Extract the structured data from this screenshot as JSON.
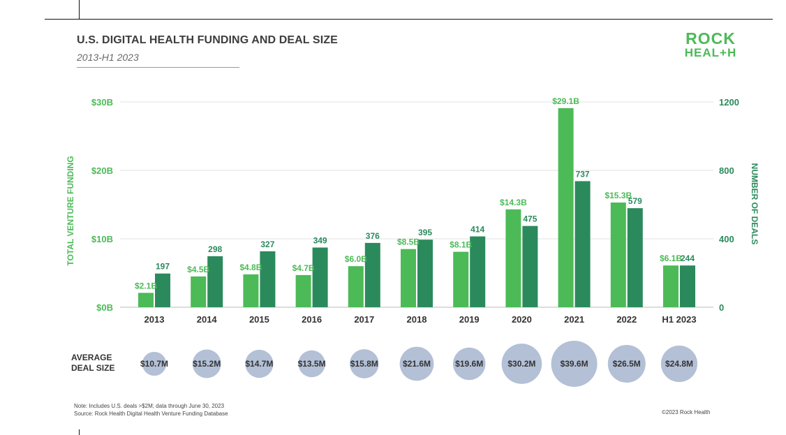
{
  "title": "U.S. DIGITAL HEALTH FUNDING AND DEAL SIZE",
  "subtitle": "2013-H1 2023",
  "logo": {
    "line1": "ROCK",
    "line2": "HEAL+H"
  },
  "note": "Note: Includes U.S. deals >$2M; data through June 30, 2023",
  "source": "Source: Rock Health Digital Health Venture Funding Database",
  "copyright": "©2023 Rock Health",
  "colors": {
    "funding": "#4cba57",
    "deals": "#2b8a5c",
    "bubble": "#b3c0d6",
    "axis_text": "#4cba57",
    "right_axis_text": "#2b8a5c"
  },
  "chart_data": {
    "type": "bar",
    "categories": [
      "2013",
      "2014",
      "2015",
      "2016",
      "2017",
      "2018",
      "2019",
      "2020",
      "2021",
      "2022",
      "H1 2023"
    ],
    "series": [
      {
        "axis": "left",
        "values": [
          2.1,
          4.5,
          4.8,
          4.7,
          6.0,
          8.5,
          8.1,
          14.3,
          29.1,
          15.3,
          6.1
        ],
        "labels": [
          "$2.1B",
          "$4.5B",
          "$4.8B",
          "$4.7B",
          "$6.0B",
          "$8.5B",
          "$8.1B",
          "$14.3B",
          "$29.1B",
          "$15.3B",
          "$6.1B"
        ]
      },
      {
        "axis": "right",
        "values": [
          197,
          298,
          327,
          349,
          376,
          395,
          414,
          475,
          737,
          579,
          244
        ],
        "labels": [
          "197",
          "298",
          "327",
          "349",
          "376",
          "395",
          "414",
          "475",
          "737",
          "579",
          "244"
        ]
      }
    ],
    "ylabel": "TOTAL VENTURE FUNDING",
    "ylabel_right": "NUMBER OF DEALS",
    "ylim": [
      0,
      30
    ],
    "ylim_right": [
      0,
      1200
    ],
    "yticks": [
      "$0B",
      "$10B",
      "$20B",
      "$30B"
    ],
    "yticks_right": [
      "0",
      "400",
      "800",
      "1200"
    ],
    "grid": true,
    "average_deal_size": {
      "label_line1": "AVERAGE",
      "label_line2": "DEAL SIZE",
      "values": [
        10.7,
        15.2,
        14.7,
        13.5,
        15.8,
        21.6,
        19.6,
        30.2,
        39.6,
        26.5,
        24.8
      ],
      "labels": [
        "$10.7M",
        "$15.2M",
        "$14.7M",
        "$13.5M",
        "$15.8M",
        "$21.6M",
        "$19.6M",
        "$30.2M",
        "$39.6M",
        "$26.5M",
        "$24.8M"
      ]
    }
  }
}
